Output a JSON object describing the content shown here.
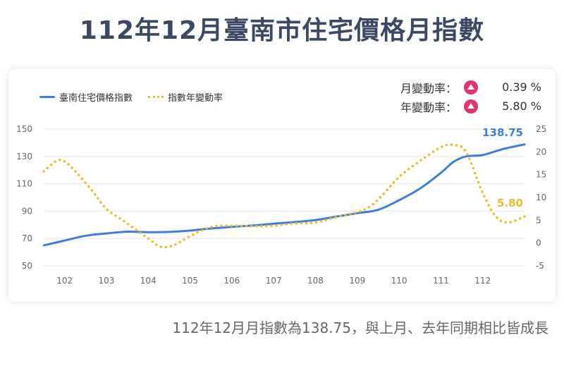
{
  "page": {
    "title": "112年12月臺南市住宅價格月指數",
    "caption": "112年12月月指數為138.75，與上月、去年同期相比皆成長"
  },
  "stats": [
    {
      "label": "月變動率：",
      "icon": "up-triangle-icon",
      "value": "0.39 %"
    },
    {
      "label": "年變動率：",
      "icon": "up-triangle-icon",
      "value": "5.80 %"
    }
  ],
  "chart_data": {
    "type": "line",
    "title": "",
    "categories": [
      "102",
      "103",
      "104",
      "105",
      "106",
      "107",
      "108",
      "109",
      "110",
      "111",
      "112"
    ],
    "x_ticks": [
      "102",
      "103",
      "104",
      "105",
      "106",
      "107",
      "108",
      "109",
      "110",
      "111",
      "112"
    ],
    "y_left": {
      "min": 50,
      "max": 150,
      "ticks": [
        50,
        70,
        90,
        110,
        130,
        150
      ]
    },
    "y_right": {
      "min": -5,
      "max": 25,
      "ticks": [
        -5,
        0,
        5,
        10,
        15,
        20,
        25
      ]
    },
    "grid": true,
    "legend_position": "top-left",
    "series": [
      {
        "name": "臺南住宅價格指數",
        "axis": "left",
        "color": "#3d7ddb",
        "style": "solid",
        "x": [
          101.5,
          102,
          102.5,
          103,
          103.5,
          104,
          104.5,
          105,
          105.5,
          106,
          106.5,
          107,
          107.5,
          108,
          108.5,
          109,
          109.5,
          110,
          110.5,
          111,
          111.3,
          111.6,
          112,
          112.5,
          113
        ],
        "values": [
          65,
          68.5,
          72,
          73.7,
          75,
          74.6,
          74.8,
          75.8,
          77.3,
          78.5,
          79.5,
          80.8,
          82,
          83.5,
          86,
          88.5,
          91,
          98,
          106.5,
          118,
          126,
          130,
          131,
          135.5,
          138.75
        ],
        "end_label": "138.75"
      },
      {
        "name": "指數年變動率",
        "axis": "right",
        "color": "#e9bd2a",
        "style": "dotted",
        "x": [
          101.5,
          101.8,
          102,
          102.3,
          102.7,
          103,
          103.5,
          104,
          104.3,
          104.6,
          105,
          105.5,
          106,
          106.5,
          107,
          107.5,
          108,
          108.5,
          109,
          109.3,
          109.6,
          110,
          110.5,
          111,
          111.3,
          111.6,
          112,
          112.3,
          112.6,
          113
        ],
        "values": [
          15.7,
          18,
          17.9,
          15.3,
          11,
          7.5,
          4.3,
          1,
          -0.8,
          -0.5,
          1.5,
          3.5,
          3.8,
          3.7,
          3.8,
          4.3,
          4.5,
          5.7,
          6.8,
          8,
          10.5,
          14.5,
          18,
          21,
          21.5,
          20,
          11,
          6,
          4.5,
          5.8
        ],
        "end_label": "5.80"
      }
    ]
  }
}
